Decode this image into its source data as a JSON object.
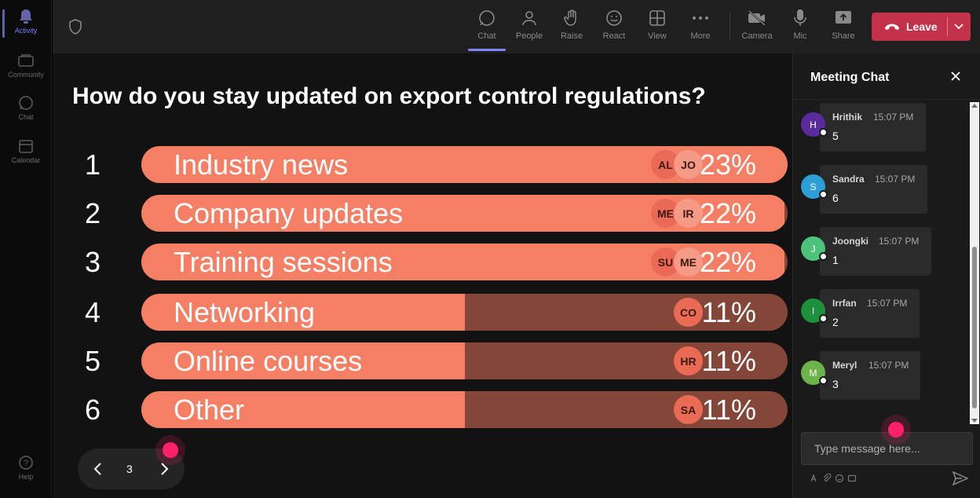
{
  "rail": {
    "items": [
      {
        "label": "Activity",
        "icon": "bell-icon"
      },
      {
        "label": "Community",
        "icon": "community-icon"
      },
      {
        "label": "Chat",
        "icon": "chat-icon"
      },
      {
        "label": "Calendar",
        "icon": "calendar-icon"
      }
    ],
    "help_label": "Help"
  },
  "topbar": {
    "buttons": [
      {
        "label": "Chat",
        "icon": "chat-icon"
      },
      {
        "label": "People",
        "icon": "people-icon"
      },
      {
        "label": "Raise",
        "icon": "raise-hand-icon"
      },
      {
        "label": "React",
        "icon": "react-icon"
      },
      {
        "label": "View",
        "icon": "view-icon"
      },
      {
        "label": "More",
        "icon": "more-icon"
      },
      {
        "label": "Camera",
        "icon": "camera-off-icon"
      },
      {
        "label": "Mic",
        "icon": "mic-icon"
      },
      {
        "label": "Share",
        "icon": "share-icon"
      }
    ],
    "leave_label": "Leave"
  },
  "poll": {
    "question": "How do you stay updated on export control regulations?",
    "options": [
      {
        "num": "1",
        "label": "Industry news",
        "percent": 23,
        "percent_label": "23%",
        "avatars": [
          "AL",
          "JO"
        ]
      },
      {
        "num": "2",
        "label": "Company updates",
        "percent": 22,
        "percent_label": "22%",
        "avatars": [
          "ME",
          "IR"
        ]
      },
      {
        "num": "3",
        "label": "Training sessions",
        "percent": 22,
        "percent_label": "22%",
        "avatars": [
          "SU",
          "ME"
        ]
      },
      {
        "num": "4",
        "label": "Networking",
        "percent": 11,
        "percent_label": "11%",
        "avatars": [
          "CO"
        ]
      },
      {
        "num": "5",
        "label": "Online courses",
        "percent": 11,
        "percent_label": "11%",
        "avatars": [
          "HR"
        ]
      },
      {
        "num": "6",
        "label": "Other",
        "percent": 11,
        "percent_label": "11%",
        "avatars": [
          "SA"
        ]
      }
    ],
    "page": "3"
  },
  "chat": {
    "title": "Meeting Chat",
    "messages": [
      {
        "initial": "H",
        "author": "Hrithik",
        "time": "15:07 PM",
        "text": "5",
        "color": "#5b2a9e"
      },
      {
        "initial": "S",
        "author": "Sandra",
        "time": "15:07 PM",
        "text": "6",
        "color": "#2e9fd6"
      },
      {
        "initial": "J",
        "author": "Joongki",
        "time": "15:07 PM",
        "text": "1",
        "color": "#4cc27a"
      },
      {
        "initial": "I",
        "author": "Irrfan",
        "time": "15:07 PM",
        "text": "2",
        "color": "#1e8f3a"
      },
      {
        "initial": "M",
        "author": "Meryl",
        "time": "15:07 PM",
        "text": "3",
        "color": "#6bb34a"
      }
    ],
    "input_placeholder": "Type message here..."
  },
  "colors": {
    "bar_fill": "#f47f65",
    "bar_track": "#844638",
    "leave": "#c4314b",
    "accent": "#7f85f5"
  }
}
